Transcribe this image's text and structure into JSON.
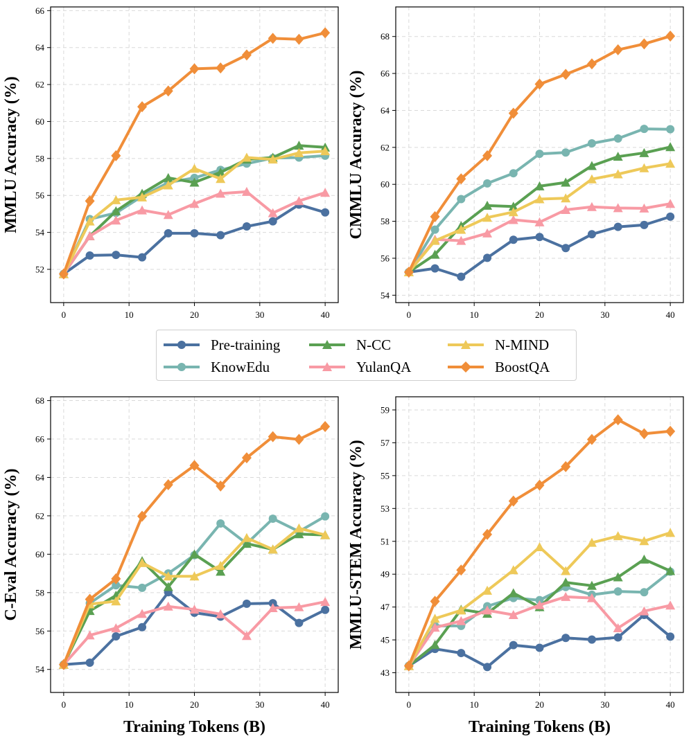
{
  "chart_data": [
    {
      "type": "line",
      "ylabel": "MMLU Accuracy (%)",
      "xlabel": "",
      "xlim": [
        -2,
        42
      ],
      "ylim": [
        50.2,
        66.2
      ],
      "xticks": [
        "0",
        "10",
        "20",
        "30",
        "40"
      ],
      "yticks": [
        "52",
        "54",
        "56",
        "58",
        "60",
        "62",
        "64",
        "66"
      ],
      "x": [
        0,
        4,
        8,
        12,
        16,
        20,
        24,
        28,
        32,
        36,
        40
      ],
      "series": [
        {
          "name": "Pre-training",
          "values": [
            51.75,
            52.75,
            52.78,
            52.65,
            53.95,
            53.95,
            53.85,
            54.32,
            54.6,
            55.5,
            55.08
          ]
        },
        {
          "name": "KnowEdu",
          "values": [
            51.75,
            54.72,
            55.05,
            55.95,
            56.7,
            56.95,
            57.38,
            57.72,
            58.02,
            58.05,
            58.15
          ]
        },
        {
          "name": "N-CC",
          "values": [
            51.75,
            53.8,
            55.15,
            56.1,
            56.95,
            56.7,
            57.25,
            57.95,
            58.05,
            58.7,
            58.6
          ]
        },
        {
          "name": "YulanQA",
          "values": [
            51.75,
            53.8,
            54.65,
            55.2,
            54.95,
            55.55,
            56.1,
            56.2,
            55.05,
            55.7,
            56.15
          ]
        },
        {
          "name": "N-MIND",
          "values": [
            51.75,
            54.6,
            55.75,
            55.9,
            56.55,
            57.45,
            56.9,
            58.05,
            57.95,
            58.3,
            58.4
          ]
        },
        {
          "name": "BoostQA",
          "values": [
            51.75,
            55.7,
            58.15,
            60.8,
            61.65,
            62.85,
            62.9,
            63.6,
            64.5,
            64.45,
            64.8
          ]
        }
      ]
    },
    {
      "type": "line",
      "ylabel": "CMMLU Accuracy (%)",
      "xlabel": "",
      "xlim": [
        -2,
        42
      ],
      "ylim": [
        53.6,
        69.6
      ],
      "xticks": [
        "0",
        "10",
        "20",
        "30",
        "40"
      ],
      "yticks": [
        "54",
        "56",
        "58",
        "60",
        "62",
        "64",
        "66",
        "68"
      ],
      "x": [
        0,
        4,
        8,
        12,
        16,
        20,
        24,
        28,
        32,
        36,
        40
      ],
      "series": [
        {
          "name": "Pre-training",
          "values": [
            55.25,
            55.45,
            55.0,
            56.02,
            57.0,
            57.15,
            56.55,
            57.3,
            57.7,
            57.8,
            58.25
          ]
        },
        {
          "name": "KnowEdu",
          "values": [
            55.25,
            57.55,
            59.2,
            60.05,
            60.6,
            61.65,
            61.72,
            62.22,
            62.48,
            63.0,
            62.98
          ]
        },
        {
          "name": "N-CC",
          "values": [
            55.25,
            56.2,
            57.75,
            58.85,
            58.8,
            59.9,
            60.1,
            61.0,
            61.5,
            61.7,
            62.02
          ]
        },
        {
          "name": "YulanQA",
          "values": [
            55.25,
            57.02,
            56.95,
            57.35,
            58.08,
            57.95,
            58.62,
            58.78,
            58.72,
            58.7,
            58.95
          ]
        },
        {
          "name": "N-MIND",
          "values": [
            55.25,
            56.95,
            57.55,
            58.2,
            58.5,
            59.2,
            59.25,
            60.28,
            60.55,
            60.88,
            61.12
          ]
        },
        {
          "name": "BoostQA",
          "values": [
            55.25,
            58.25,
            60.3,
            61.55,
            63.85,
            65.42,
            65.95,
            66.52,
            67.28,
            67.6,
            68.02
          ]
        }
      ]
    },
    {
      "type": "line",
      "ylabel": "C-Eval Accuracy (%)",
      "xlabel": "Training Tokens (B)",
      "xlim": [
        -2,
        42
      ],
      "ylim": [
        52.8,
        68.2
      ],
      "xticks": [
        "0",
        "10",
        "20",
        "30",
        "40"
      ],
      "yticks": [
        "54",
        "56",
        "58",
        "60",
        "62",
        "64",
        "66",
        "68"
      ],
      "x": [
        0,
        4,
        8,
        12,
        16,
        20,
        24,
        28,
        32,
        36,
        40
      ],
      "series": [
        {
          "name": "Pre-training",
          "values": [
            54.25,
            54.35,
            55.72,
            56.2,
            58.02,
            56.95,
            56.75,
            57.42,
            57.45,
            56.42,
            57.1
          ]
        },
        {
          "name": "KnowEdu",
          "values": [
            54.25,
            57.45,
            58.38,
            58.25,
            59.0,
            59.95,
            61.6,
            60.55,
            61.85,
            61.18,
            61.97
          ]
        },
        {
          "name": "N-CC",
          "values": [
            54.25,
            57.05,
            57.85,
            59.65,
            58.3,
            60.0,
            59.1,
            60.55,
            60.25,
            61.05,
            61.0
          ]
        },
        {
          "name": "YulanQA",
          "values": [
            54.25,
            55.78,
            56.15,
            56.9,
            57.28,
            57.12,
            56.88,
            55.75,
            57.2,
            57.25,
            57.52
          ]
        },
        {
          "name": "N-MIND",
          "values": [
            54.25,
            57.4,
            57.55,
            59.55,
            58.85,
            58.85,
            59.4,
            60.85,
            60.25,
            61.35,
            61.0
          ]
        },
        {
          "name": "BoostQA",
          "values": [
            54.25,
            57.65,
            58.72,
            61.98,
            63.62,
            64.62,
            63.55,
            65.02,
            66.12,
            65.98,
            66.65
          ]
        }
      ]
    },
    {
      "type": "line",
      "ylabel": "MMLU-STEM Accuracy (%)",
      "xlabel": "Training Tokens (B)",
      "xlim": [
        -2,
        42
      ],
      "ylim": [
        41.8,
        59.8
      ],
      "xticks": [
        "0",
        "10",
        "20",
        "30",
        "40"
      ],
      "yticks": [
        "43",
        "45",
        "47",
        "49",
        "51",
        "53",
        "55",
        "57",
        "59"
      ],
      "x": [
        0,
        4,
        8,
        12,
        16,
        20,
        24,
        28,
        32,
        36,
        40
      ],
      "series": [
        {
          "name": "Pre-training",
          "values": [
            43.42,
            44.45,
            44.2,
            43.35,
            44.68,
            44.52,
            45.12,
            45.02,
            45.15,
            46.52,
            45.2
          ]
        },
        {
          "name": "KnowEdu",
          "values": [
            43.42,
            45.85,
            45.85,
            47.05,
            47.55,
            47.42,
            48.22,
            47.75,
            47.95,
            47.9,
            49.15
          ]
        },
        {
          "name": "N-CC",
          "values": [
            43.42,
            44.7,
            46.85,
            46.6,
            47.85,
            47.0,
            48.5,
            48.3,
            48.82,
            49.9,
            49.2
          ]
        },
        {
          "name": "YulanQA",
          "values": [
            43.42,
            45.75,
            46.15,
            46.8,
            46.52,
            47.12,
            47.62,
            47.55,
            45.72,
            46.75,
            47.1
          ]
        },
        {
          "name": "N-MIND",
          "values": [
            43.42,
            46.3,
            46.8,
            48.0,
            49.25,
            50.65,
            49.2,
            50.92,
            51.32,
            51.02,
            51.52
          ]
        },
        {
          "name": "BoostQA",
          "values": [
            43.42,
            47.35,
            49.25,
            51.42,
            53.45,
            54.42,
            55.55,
            57.2,
            58.4,
            57.55,
            57.7
          ]
        }
      ]
    }
  ],
  "legend": {
    "entries": [
      {
        "name": "Pre-training",
        "color": "#4b71a0",
        "marker": "circle"
      },
      {
        "name": "KnowEdu",
        "color": "#79b5b0",
        "marker": "circle"
      },
      {
        "name": "N-CC",
        "color": "#5aa052",
        "marker": "triangle"
      },
      {
        "name": "YulanQA",
        "color": "#f89aa4",
        "marker": "triangle"
      },
      {
        "name": "N-MIND",
        "color": "#eec959",
        "marker": "triangle"
      },
      {
        "name": "BoostQA",
        "color": "#f08e39",
        "marker": "diamond"
      }
    ]
  }
}
